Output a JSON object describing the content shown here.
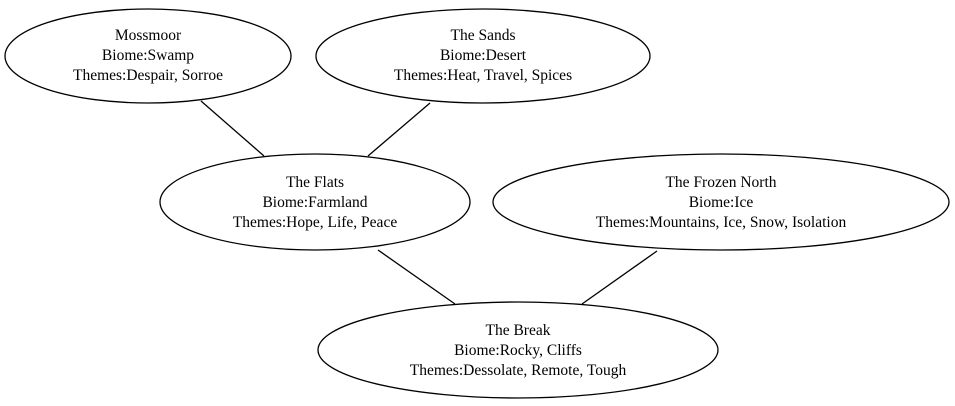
{
  "graph": {
    "nodes": [
      {
        "id": "mossmoor",
        "name": "Mossmoor",
        "biome": "Biome:Swamp",
        "themes": "Themes:Despair, Sorroe"
      },
      {
        "id": "sands",
        "name": "The Sands",
        "biome": "Biome:Desert",
        "themes": "Themes:Heat, Travel, Spices"
      },
      {
        "id": "flats",
        "name": "The Flats",
        "biome": "Biome:Farmland",
        "themes": "Themes:Hope, Life, Peace"
      },
      {
        "id": "frozen-north",
        "name": "The Frozen North",
        "biome": "Biome:Ice",
        "themes": "Themes:Mountains, Ice, Snow, Isolation"
      },
      {
        "id": "break",
        "name": "The Break",
        "biome": "Biome:Rocky, Cliffs",
        "themes": "Themes:Dessolate, Remote, Tough"
      }
    ],
    "edges": [
      {
        "from": "mossmoor",
        "to": "flats"
      },
      {
        "from": "sands",
        "to": "flats"
      },
      {
        "from": "flats",
        "to": "break"
      },
      {
        "from": "frozen-north",
        "to": "break"
      }
    ]
  }
}
